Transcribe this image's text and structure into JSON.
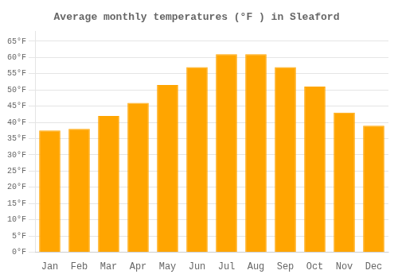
{
  "chart_data": {
    "type": "bar",
    "title": "Average monthly temperatures (°F ) in Sleaford",
    "categories": [
      "Jan",
      "Feb",
      "Mar",
      "Apr",
      "May",
      "Jun",
      "Jul",
      "Aug",
      "Sep",
      "Oct",
      "Nov",
      "Dec"
    ],
    "values": [
      37.5,
      38.0,
      42.0,
      46.0,
      51.5,
      57.0,
      61.0,
      61.0,
      57.0,
      51.0,
      43.0,
      39.0
    ],
    "color": "#FFA500",
    "ylim": [
      0,
      68
    ],
    "yticks": [
      {
        "value": 0,
        "label": "0°F"
      },
      {
        "value": 5,
        "label": "5°F"
      },
      {
        "value": 10,
        "label": "10°F"
      },
      {
        "value": 15,
        "label": "15°F"
      },
      {
        "value": 20,
        "label": "20°F"
      },
      {
        "value": 25,
        "label": "25°F"
      },
      {
        "value": 30,
        "label": "30°F"
      },
      {
        "value": 35,
        "label": "35°F"
      },
      {
        "value": 40,
        "label": "40°F"
      },
      {
        "value": 45,
        "label": "45°F"
      },
      {
        "value": 50,
        "label": "50°F"
      },
      {
        "value": 55,
        "label": "55°F"
      },
      {
        "value": 60,
        "label": "60°F"
      },
      {
        "value": 65,
        "label": "65°F"
      }
    ],
    "grid": true
  }
}
